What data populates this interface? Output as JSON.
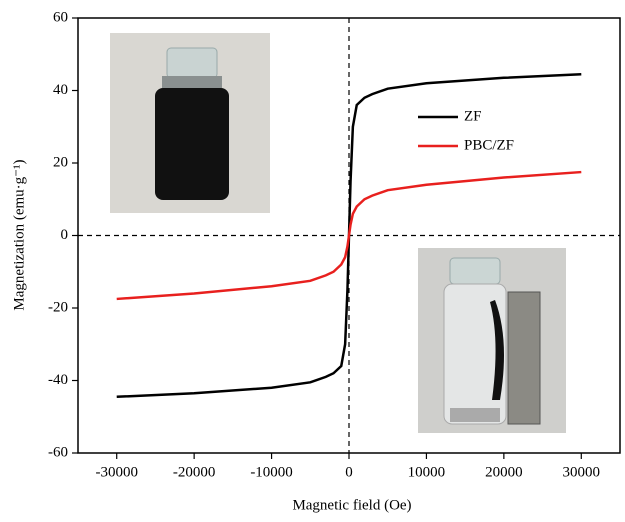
{
  "chart_data": {
    "type": "line",
    "x_label": "Magnetic field (Oe)",
    "y_label": "Magnetization (emu·g⁻¹)",
    "x": [
      -30000,
      -20000,
      -10000,
      -5000,
      -3000,
      -2000,
      -1000,
      -500,
      -200,
      0,
      200,
      500,
      1000,
      2000,
      3000,
      5000,
      10000,
      20000,
      30000
    ],
    "series": [
      {
        "name": "ZF",
        "color": "#000000",
        "values": [
          -44.5,
          -43.5,
          -42,
          -40.5,
          -39,
          -38,
          -36,
          -30,
          -15,
          0,
          15,
          30,
          36,
          38,
          39,
          40.5,
          42,
          43.5,
          44.5
        ]
      },
      {
        "name": "PBC/ZF",
        "color": "#e8201e",
        "values": [
          -17.5,
          -16,
          -14,
          -12.5,
          -11,
          -10,
          -8,
          -6,
          -3,
          0,
          3,
          6,
          8,
          10,
          11,
          12.5,
          14,
          16,
          17.5
        ]
      }
    ],
    "xlim": [
      -35000,
      35000
    ],
    "ylim": [
      -60,
      60
    ],
    "xticks": [
      -30000,
      -20000,
      -10000,
      0,
      10000,
      20000,
      30000
    ],
    "yticks": [
      -60,
      -40,
      -20,
      0,
      20,
      40,
      60
    ],
    "legend": "upper right"
  }
}
